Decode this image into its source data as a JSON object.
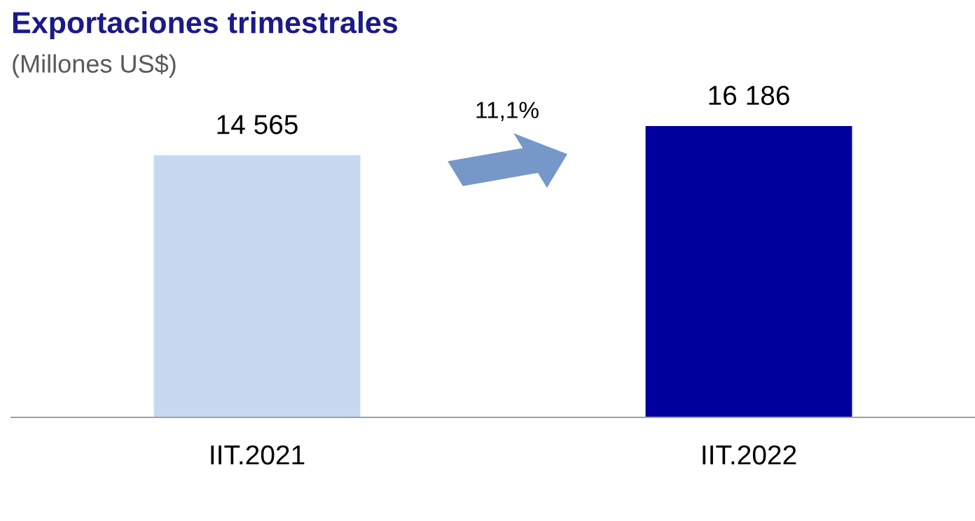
{
  "chart_data": {
    "type": "bar",
    "title": "Exportaciones trimestrales",
    "subtitle": "(Millones US$)",
    "categories": [
      "IIT.2021",
      "IIT.2022"
    ],
    "values": [
      14565,
      16186
    ],
    "colors": [
      "#c6d9f1",
      "#00009c"
    ],
    "value_labels": [
      "14 565",
      "16 186"
    ],
    "annotations": [
      "11,1%"
    ],
    "grid": false,
    "legend": false
  }
}
